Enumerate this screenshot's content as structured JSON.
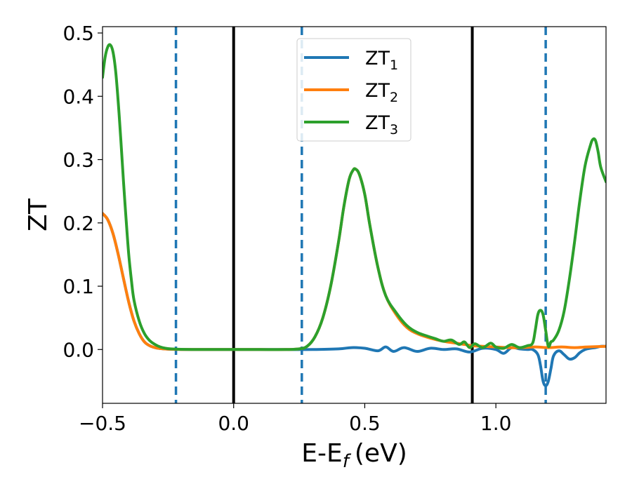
{
  "chart_data": {
    "type": "line",
    "xlabel": "E-E",
    "xlabel_subscript": "f",
    "xlabel_unit": "(eV)",
    "ylabel": "ZT",
    "xlim": [
      -0.5,
      1.42
    ],
    "ylim": [
      -0.085,
      0.51
    ],
    "xticks": [
      -0.5,
      0.0,
      0.5,
      1.0
    ],
    "xtick_labels": [
      "−0.5",
      "0.0",
      "0.5",
      "1.0"
    ],
    "yticks": [
      0.0,
      0.1,
      0.2,
      0.3,
      0.4,
      0.5
    ],
    "ytick_labels": [
      "0.0",
      "0.1",
      "0.2",
      "0.3",
      "0.4",
      "0.5"
    ],
    "grid": false,
    "legend_position": "upper-center",
    "vertical_lines": [
      {
        "x": -0.22,
        "style": "dashed",
        "color": "#1f77b4"
      },
      {
        "x": 0.0,
        "style": "solid",
        "color": "#000000"
      },
      {
        "x": 0.26,
        "style": "dashed",
        "color": "#1f77b4"
      },
      {
        "x": 0.91,
        "style": "solid",
        "color": "#000000"
      },
      {
        "x": 1.19,
        "style": "dashed",
        "color": "#1f77b4"
      }
    ],
    "series": [
      {
        "name": "ZT",
        "sub": "1",
        "color": "#1f77b4",
        "x": [
          -0.5,
          -0.48,
          -0.46,
          -0.44,
          -0.42,
          -0.4,
          -0.38,
          -0.36,
          -0.34,
          -0.32,
          -0.3,
          -0.28,
          -0.26,
          -0.24,
          -0.22,
          -0.2,
          -0.15,
          -0.1,
          0.0,
          0.1,
          0.2,
          0.3,
          0.4,
          0.45,
          0.5,
          0.55,
          0.58,
          0.61,
          0.65,
          0.7,
          0.75,
          0.8,
          0.85,
          0.9,
          0.95,
          1.0,
          1.03,
          1.06,
          1.09,
          1.12,
          1.14,
          1.16,
          1.17,
          1.18,
          1.19,
          1.2,
          1.21,
          1.22,
          1.24,
          1.26,
          1.28,
          1.3,
          1.32,
          1.34,
          1.36,
          1.38,
          1.4,
          1.42
        ],
        "y": [
          0.215,
          0.205,
          0.183,
          0.15,
          0.112,
          0.075,
          0.045,
          0.025,
          0.012,
          0.006,
          0.003,
          0.0015,
          0.0008,
          0.0004,
          0.0002,
          0.0001,
          0.0,
          0.0,
          0.0,
          0.0,
          0.0,
          0.0,
          0.001,
          0.003,
          0.002,
          -0.002,
          0.004,
          -0.003,
          0.003,
          -0.003,
          0.002,
          0.0,
          0.001,
          -0.004,
          0.002,
          0.0,
          -0.006,
          0.003,
          0.001,
          0.0,
          0.0,
          -0.008,
          -0.025,
          -0.05,
          -0.057,
          -0.05,
          -0.03,
          -0.01,
          -0.002,
          -0.008,
          -0.015,
          -0.013,
          -0.005,
          0.0,
          0.002,
          0.003,
          0.005,
          0.005
        ]
      },
      {
        "name": "ZT",
        "sub": "2",
        "color": "#ff7f0e",
        "x": [
          -0.5,
          -0.48,
          -0.46,
          -0.44,
          -0.42,
          -0.4,
          -0.38,
          -0.36,
          -0.34,
          -0.32,
          -0.3,
          -0.28,
          -0.26,
          -0.24,
          -0.22,
          -0.2,
          -0.15,
          -0.1,
          0.0,
          0.1,
          0.2,
          0.25,
          0.28,
          0.31,
          0.34,
          0.37,
          0.4,
          0.42,
          0.44,
          0.455,
          0.465,
          0.48,
          0.5,
          0.52,
          0.55,
          0.58,
          0.62,
          0.66,
          0.7,
          0.75,
          0.8,
          0.85,
          0.88,
          0.91,
          0.95,
          1.0,
          1.05,
          1.1,
          1.15,
          1.2,
          1.25,
          1.3,
          1.35,
          1.42
        ],
        "y": [
          0.215,
          0.205,
          0.183,
          0.15,
          0.112,
          0.075,
          0.045,
          0.025,
          0.012,
          0.006,
          0.003,
          0.0015,
          0.0008,
          0.0004,
          0.0002,
          0.0001,
          0.0,
          0.0,
          0.0,
          0.0,
          0.0,
          0.001,
          0.005,
          0.02,
          0.05,
          0.1,
          0.17,
          0.225,
          0.268,
          0.283,
          0.285,
          0.276,
          0.245,
          0.195,
          0.13,
          0.085,
          0.055,
          0.035,
          0.025,
          0.018,
          0.013,
          0.01,
          0.008,
          0.006,
          0.005,
          0.004,
          0.003,
          0.003,
          0.004,
          0.003,
          0.004,
          0.003,
          0.004,
          0.005
        ]
      },
      {
        "name": "ZT",
        "sub": "3",
        "color": "#2ca02c",
        "x": [
          -0.5,
          -0.49,
          -0.48,
          -0.47,
          -0.46,
          -0.45,
          -0.44,
          -0.43,
          -0.42,
          -0.41,
          -0.4,
          -0.39,
          -0.38,
          -0.36,
          -0.34,
          -0.32,
          -0.3,
          -0.28,
          -0.26,
          -0.24,
          -0.22,
          -0.2,
          -0.15,
          -0.1,
          0.0,
          0.1,
          0.2,
          0.25,
          0.28,
          0.31,
          0.34,
          0.37,
          0.4,
          0.42,
          0.44,
          0.455,
          0.465,
          0.48,
          0.5,
          0.52,
          0.55,
          0.58,
          0.62,
          0.66,
          0.7,
          0.74,
          0.77,
          0.8,
          0.83,
          0.86,
          0.88,
          0.9,
          0.92,
          0.95,
          0.98,
          1.0,
          1.03,
          1.06,
          1.09,
          1.12,
          1.14,
          1.15,
          1.16,
          1.17,
          1.18,
          1.19,
          1.2,
          1.21,
          1.22,
          1.24,
          1.26,
          1.28,
          1.3,
          1.32,
          1.34,
          1.36,
          1.37,
          1.38,
          1.39,
          1.4,
          1.42
        ],
        "y": [
          0.43,
          0.462,
          0.478,
          0.481,
          0.47,
          0.44,
          0.39,
          0.33,
          0.265,
          0.205,
          0.15,
          0.11,
          0.078,
          0.045,
          0.025,
          0.014,
          0.008,
          0.004,
          0.002,
          0.001,
          0.0006,
          0.0003,
          0.0,
          0.0,
          0.0,
          0.0,
          0.0,
          0.001,
          0.005,
          0.02,
          0.05,
          0.1,
          0.17,
          0.225,
          0.268,
          0.283,
          0.285,
          0.276,
          0.245,
          0.195,
          0.13,
          0.085,
          0.058,
          0.038,
          0.027,
          0.021,
          0.017,
          0.013,
          0.015,
          0.008,
          0.012,
          0.003,
          0.009,
          0.003,
          0.01,
          0.004,
          0.002,
          0.008,
          0.003,
          0.006,
          0.01,
          0.03,
          0.055,
          0.062,
          0.055,
          0.03,
          0.005,
          0.012,
          0.015,
          0.03,
          0.06,
          0.11,
          0.17,
          0.235,
          0.29,
          0.322,
          0.332,
          0.33,
          0.312,
          0.288,
          0.265
        ]
      }
    ]
  }
}
